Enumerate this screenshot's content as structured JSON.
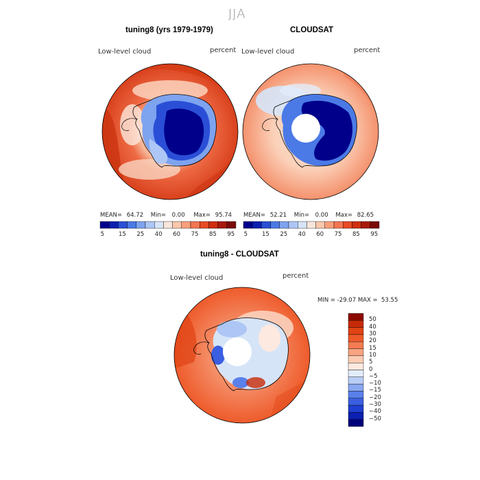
{
  "figure": {
    "title": "JJA",
    "panels": [
      {
        "id": "model",
        "title": "tuning8 (yrs 1979-1979)",
        "variable_label": "Low-level cloud",
        "units": "percent",
        "stats": {
          "mean_label": "MEAN=",
          "mean": "64.72",
          "min_label": "Min=",
          "min": "0.00",
          "max_label": "Max=",
          "max": "95.74"
        },
        "has_data_hole": false
      },
      {
        "id": "obs",
        "title": "CLOUDSAT",
        "variable_label": "Low-level cloud",
        "units": "percent",
        "stats": {
          "mean_label": "MEAN=",
          "mean": "52.21",
          "min_label": "Min=",
          "min": "0.00",
          "max_label": "Max=",
          "max": "82.65"
        },
        "has_data_hole": true
      },
      {
        "id": "diff",
        "title": "tuning8 - CLOUDSAT",
        "variable_label": "Low-level cloud",
        "units": "percent",
        "stats_line": "MIN = -29.07 MAX =  53.55",
        "has_data_hole": true
      }
    ],
    "abs_colorbar": {
      "colors": [
        "#00008b",
        "#0c1fb0",
        "#2a4fd6",
        "#4b7ae6",
        "#7ea3ef",
        "#adc6f5",
        "#d6e4f8",
        "#f8e6dc",
        "#fbc7ad",
        "#f8a07c",
        "#f27550",
        "#e84a25",
        "#d02e0f",
        "#a8190a",
        "#7a0a05"
      ],
      "labels": [
        "5",
        "15",
        "25",
        "40",
        "60",
        "75",
        "85",
        "95"
      ]
    },
    "diff_colorbar": {
      "colors": [
        "#00007a",
        "#0b1fb0",
        "#1f3fd0",
        "#3a5fe0",
        "#5a80ea",
        "#89a8f0",
        "#b9cdf6",
        "#e3ecfa",
        "#fde9df",
        "#fbcbb3",
        "#f8a482",
        "#f47b52",
        "#ee5a2a",
        "#e04314",
        "#c82a08",
        "#8b0a00"
      ],
      "labels": [
        "50",
        "40",
        "30",
        "20",
        "15",
        "10",
        "5",
        "0",
        "−5",
        "−10",
        "−15",
        "−20",
        "−30",
        "−40",
        "−50"
      ]
    }
  }
}
